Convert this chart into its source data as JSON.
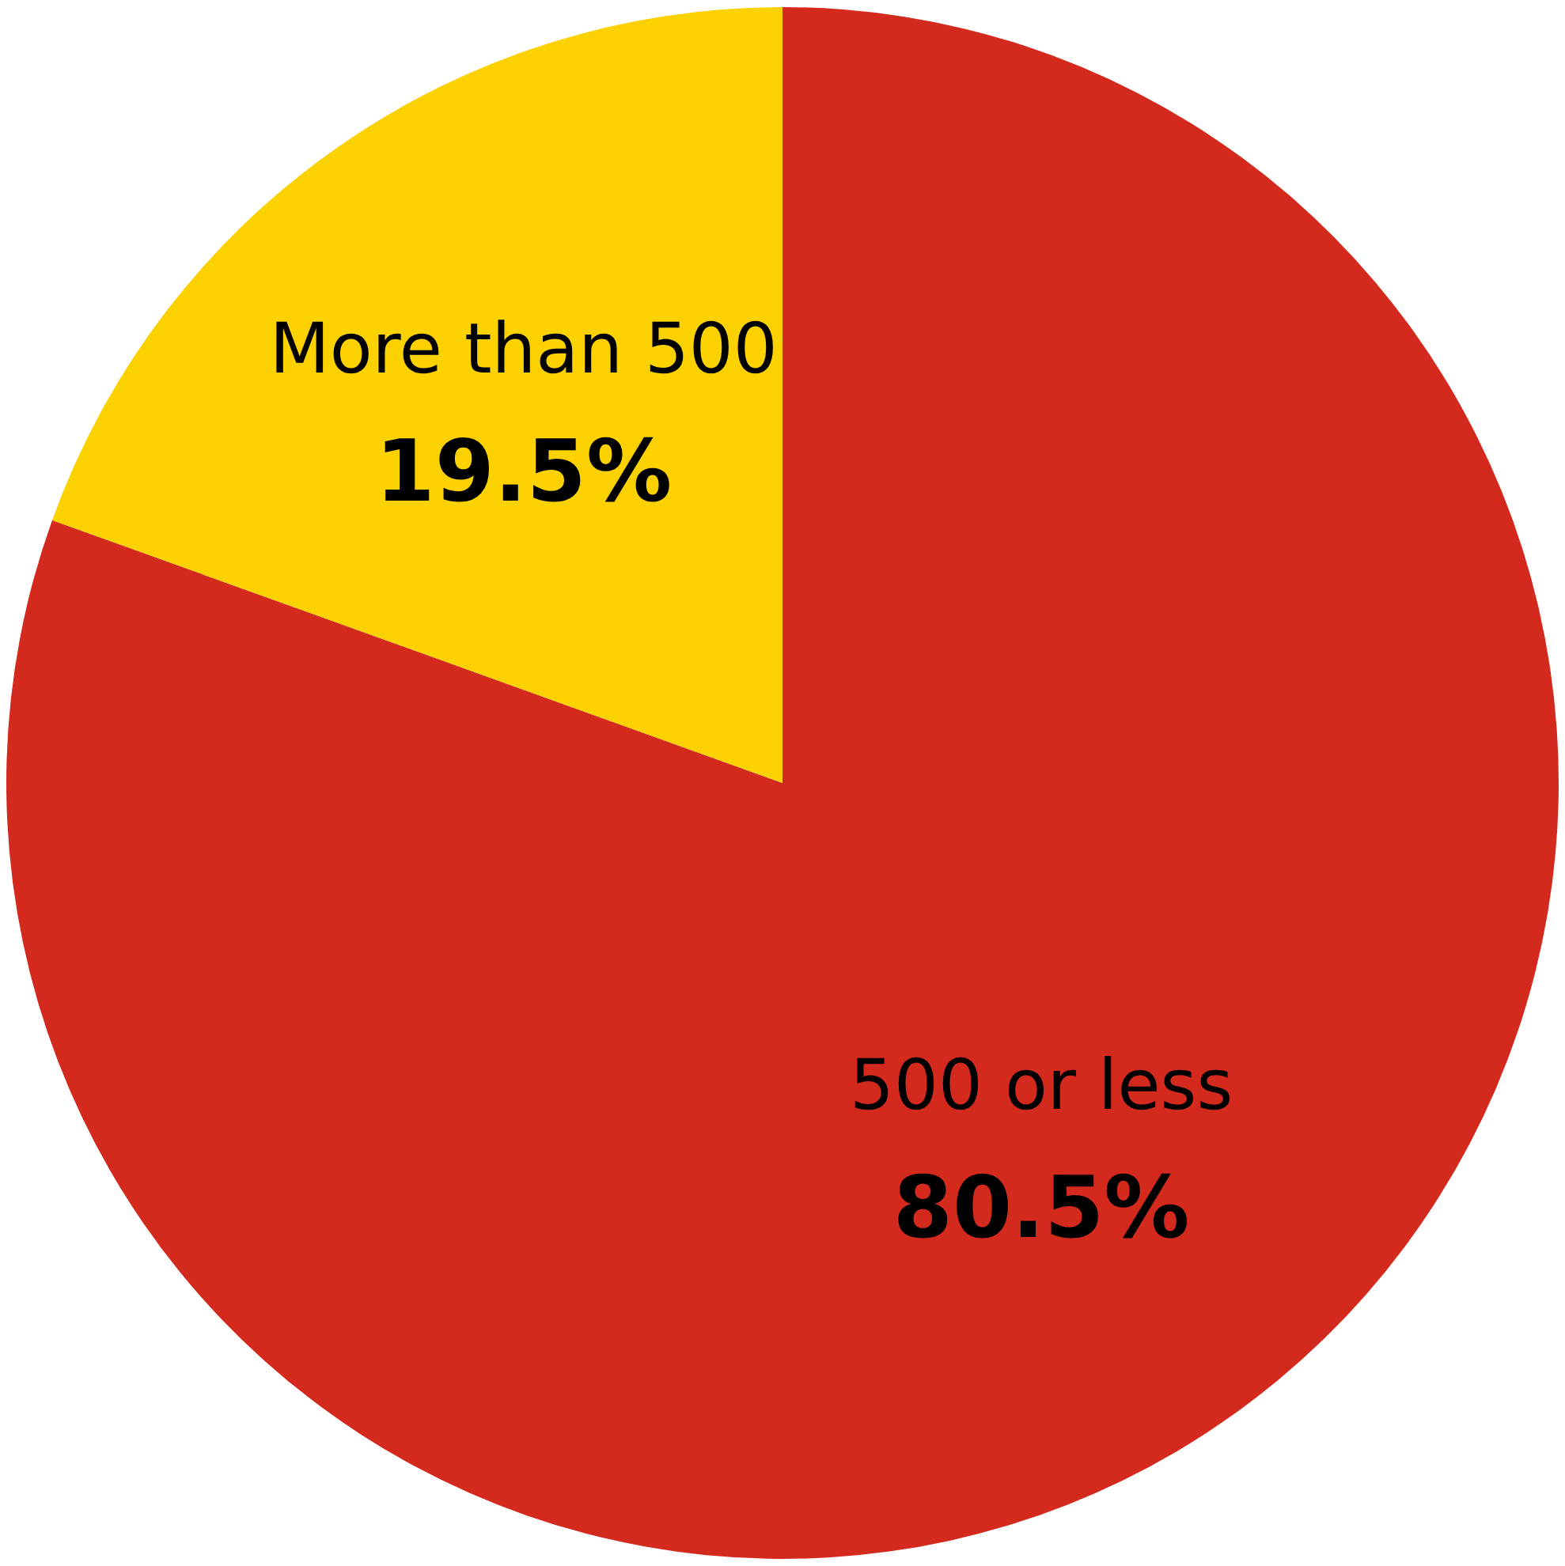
{
  "chart_data": {
    "type": "pie",
    "categories": [
      "500 or less",
      "More than 500"
    ],
    "values": [
      80.5,
      19.5
    ],
    "colors": [
      "#d42a1e",
      "#fcd100"
    ],
    "value_labels": [
      "80.5%",
      "19.5%"
    ]
  }
}
